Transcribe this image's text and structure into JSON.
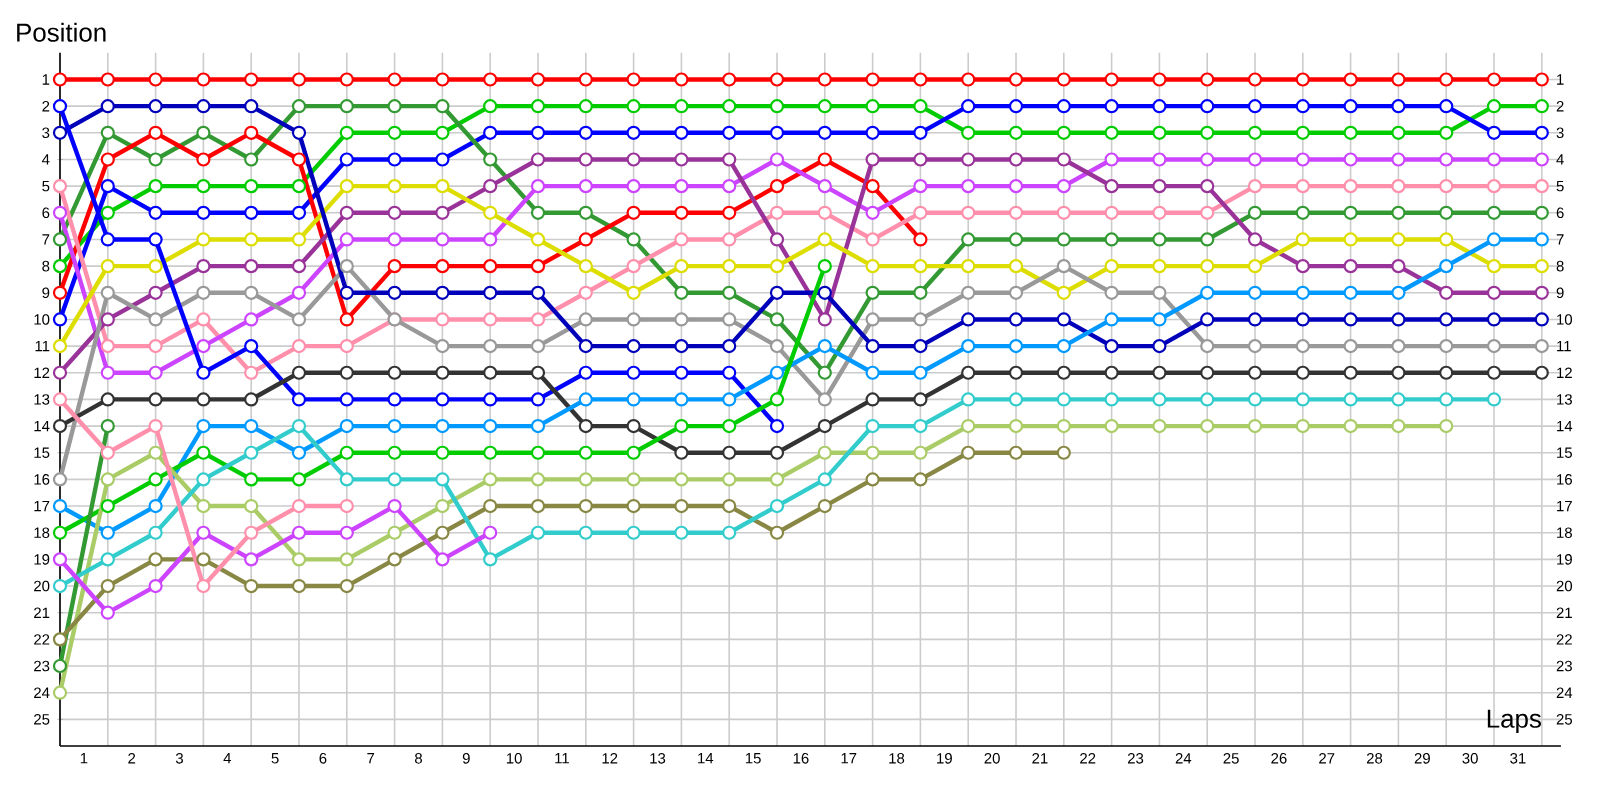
{
  "chart_data": {
    "type": "line",
    "xlabel": "Laps",
    "ylabel": "Position",
    "x": [
      0,
      1,
      2,
      3,
      4,
      5,
      6,
      7,
      8,
      9,
      10,
      11,
      12,
      13,
      14,
      15,
      16,
      17,
      18,
      19,
      20,
      21,
      22,
      23,
      24,
      25,
      26,
      27,
      28,
      29,
      30,
      31
    ],
    "xlim": [
      0,
      31.4
    ],
    "ylim": [
      26,
      0
    ],
    "y2lim": [
      26,
      0
    ],
    "xticks": [
      {
        "value": 0,
        "label": null
      },
      {
        "value": 1,
        "label": null
      },
      {
        "value": 2,
        "label": null
      },
      {
        "value": 3,
        "label": null
      },
      {
        "value": 4,
        "label": null
      },
      {
        "value": 5,
        "label": null
      },
      {
        "value": 6,
        "label": null
      },
      {
        "value": 7,
        "label": null
      },
      {
        "value": 8,
        "label": null
      },
      {
        "value": 9,
        "label": null
      },
      {
        "value": 10,
        "label": null
      },
      {
        "value": 11,
        "label": null
      },
      {
        "value": 12,
        "label": null
      },
      {
        "value": 13,
        "label": null
      },
      {
        "value": 14,
        "label": null
      },
      {
        "value": 15,
        "label": null
      },
      {
        "value": 16,
        "label": null
      },
      {
        "value": 17,
        "label": null
      },
      {
        "value": 18,
        "label": null
      },
      {
        "value": 19,
        "label": null
      },
      {
        "value": 20,
        "label": null
      },
      {
        "value": 21,
        "label": null
      },
      {
        "value": 22,
        "label": null
      },
      {
        "value": 23,
        "label": null
      },
      {
        "value": 24,
        "label": null
      },
      {
        "value": 25,
        "label": null
      },
      {
        "value": 26,
        "label": null
      },
      {
        "value": 27,
        "label": null
      },
      {
        "value": 28,
        "label": null
      },
      {
        "value": 29,
        "label": null
      },
      {
        "value": 30,
        "label": null
      },
      {
        "value": 31,
        "label": null
      },
      {
        "value": 0.5,
        "label": "1"
      },
      {
        "value": 1.5,
        "label": "2"
      },
      {
        "value": 2.5,
        "label": "3"
      },
      {
        "value": 3.5,
        "label": "4"
      },
      {
        "value": 4.5,
        "label": "5"
      },
      {
        "value": 5.5,
        "label": "6"
      },
      {
        "value": 6.5,
        "label": "7"
      },
      {
        "value": 7.5,
        "label": "8"
      },
      {
        "value": 8.5,
        "label": "9"
      },
      {
        "value": 9.5,
        "label": "10"
      },
      {
        "value": 10.5,
        "label": "11"
      },
      {
        "value": 11.5,
        "label": "12"
      },
      {
        "value": 12.5,
        "label": "13"
      },
      {
        "value": 13.5,
        "label": "14"
      },
      {
        "value": 14.5,
        "label": "15"
      },
      {
        "value": 15.5,
        "label": "16"
      },
      {
        "value": 16.5,
        "label": "17"
      },
      {
        "value": 17.5,
        "label": "18"
      },
      {
        "value": 18.5,
        "label": "19"
      },
      {
        "value": 19.5,
        "label": "20"
      },
      {
        "value": 20.5,
        "label": "21"
      },
      {
        "value": 21.5,
        "label": "22"
      },
      {
        "value": 22.5,
        "label": "23"
      },
      {
        "value": 23.5,
        "label": "24"
      },
      {
        "value": 24.5,
        "label": "25"
      },
      {
        "value": 25.5,
        "label": "26"
      },
      {
        "value": 26.5,
        "label": "27"
      },
      {
        "value": 27.5,
        "label": "28"
      },
      {
        "value": 28.5,
        "label": "29"
      },
      {
        "value": 29.5,
        "label": "30"
      },
      {
        "value": 30.5,
        "label": "31"
      }
    ],
    "yticks": [
      1,
      2,
      3,
      4,
      5,
      6,
      7,
      8,
      9,
      10,
      11,
      12,
      13,
      14,
      15,
      16,
      17,
      18,
      19,
      20,
      21,
      22,
      23,
      24,
      25
    ],
    "y2ticks": [
      1,
      2,
      3,
      4,
      5,
      6,
      7,
      8,
      9,
      10,
      11,
      12,
      13,
      14,
      15,
      16,
      17,
      18,
      19,
      20,
      21,
      22,
      23,
      24,
      25
    ],
    "grid": true,
    "marker": "circle",
    "line_style": "solid",
    "series": [
      {
        "color": "#ff0000",
        "values": [
          1,
          1,
          1,
          1,
          1,
          1,
          1,
          1,
          1,
          1,
          1,
          1,
          1,
          1,
          1,
          1,
          1,
          1,
          1,
          1,
          1,
          1,
          1,
          1,
          1,
          1,
          1,
          1,
          1,
          1,
          1,
          1
        ]
      },
      {
        "color": "#00cc00",
        "values": [
          8,
          6,
          5,
          5,
          5,
          5,
          3,
          3,
          3,
          2,
          2,
          2,
          2,
          2,
          2,
          2,
          2,
          2,
          2,
          3,
          3,
          3,
          3,
          3,
          3,
          3,
          3,
          3,
          3,
          3,
          2,
          2
        ]
      },
      {
        "color": "#0000ff",
        "values": [
          10,
          5,
          6,
          6,
          6,
          6,
          4,
          4,
          4,
          3,
          3,
          3,
          3,
          3,
          3,
          3,
          3,
          3,
          3,
          2,
          2,
          2,
          2,
          2,
          2,
          2,
          2,
          2,
          2,
          2,
          3,
          3
        ]
      },
      {
        "color": "#339933",
        "values": [
          7,
          3,
          4,
          3,
          4,
          2,
          2,
          2,
          2,
          4,
          6,
          6,
          7,
          9,
          9,
          10,
          12,
          9,
          9,
          7,
          7,
          7,
          7,
          7,
          7,
          6,
          6,
          6,
          6,
          6,
          6,
          6
        ]
      },
      {
        "color": "#ff0000",
        "values": [
          9,
          4,
          3,
          4,
          3,
          4,
          10,
          8,
          8,
          8,
          8,
          7,
          6,
          6,
          6,
          5,
          4,
          5,
          7,
          null,
          null,
          null,
          null,
          null,
          null,
          null,
          null,
          null,
          null,
          null,
          null,
          null
        ]
      },
      {
        "color": "#ff8fab",
        "values": [
          5,
          11,
          11,
          10,
          12,
          11,
          11,
          10,
          10,
          10,
          10,
          9,
          8,
          7,
          7,
          6,
          6,
          7,
          6,
          6,
          6,
          6,
          6,
          6,
          6,
          5,
          5,
          5,
          5,
          5,
          5,
          5
        ]
      },
      {
        "color": "#cc44ff",
        "values": [
          6,
          12,
          12,
          11,
          10,
          9,
          7,
          7,
          7,
          7,
          5,
          5,
          5,
          5,
          5,
          4,
          5,
          6,
          5,
          5,
          5,
          5,
          4,
          4,
          4,
          4,
          4,
          4,
          4,
          4,
          4,
          4
        ]
      },
      {
        "color": "#993399",
        "values": [
          12,
          10,
          9,
          8,
          8,
          8,
          6,
          6,
          6,
          5,
          4,
          4,
          4,
          4,
          4,
          7,
          10,
          4,
          4,
          4,
          4,
          4,
          5,
          5,
          5,
          7,
          8,
          8,
          8,
          9,
          9,
          9
        ]
      },
      {
        "color": "#dddd00",
        "values": [
          11,
          8,
          8,
          7,
          7,
          7,
          5,
          5,
          5,
          6,
          7,
          8,
          9,
          8,
          8,
          8,
          7,
          8,
          8,
          8,
          8,
          9,
          8,
          8,
          8,
          8,
          7,
          7,
          7,
          7,
          8,
          8
        ]
      },
      {
        "color": "#999999",
        "values": [
          16,
          9,
          10,
          9,
          9,
          10,
          8,
          10,
          11,
          11,
          11,
          10,
          10,
          10,
          10,
          11,
          13,
          10,
          10,
          9,
          9,
          8,
          9,
          9,
          11,
          11,
          11,
          11,
          11,
          11,
          11,
          11
        ]
      },
      {
        "color": "#0000bb",
        "values": [
          3,
          2,
          2,
          2,
          2,
          3,
          9,
          9,
          9,
          9,
          9,
          11,
          11,
          11,
          11,
          9,
          9,
          11,
          11,
          10,
          10,
          10,
          11,
          11,
          10,
          10,
          10,
          10,
          10,
          10,
          10,
          10
        ]
      },
      {
        "color": "#0000ff",
        "values": [
          2,
          7,
          7,
          12,
          11,
          13,
          13,
          13,
          13,
          13,
          13,
          12,
          12,
          12,
          12,
          14,
          null,
          null,
          null,
          null,
          null,
          null,
          null,
          null,
          null,
          null,
          null,
          null,
          null,
          null,
          null,
          null
        ]
      },
      {
        "color": "#333333",
        "values": [
          14,
          13,
          13,
          13,
          13,
          12,
          12,
          12,
          12,
          12,
          12,
          14,
          14,
          15,
          15,
          15,
          14,
          13,
          13,
          12,
          12,
          12,
          12,
          12,
          12,
          12,
          12,
          12,
          12,
          12,
          12,
          12
        ]
      },
      {
        "color": "#0099ff",
        "values": [
          17,
          18,
          17,
          14,
          14,
          15,
          14,
          14,
          14,
          14,
          14,
          13,
          13,
          13,
          13,
          12,
          11,
          12,
          12,
          11,
          11,
          11,
          10,
          10,
          9,
          9,
          9,
          9,
          9,
          8,
          7,
          7
        ]
      },
      {
        "color": "#00cc00",
        "values": [
          18,
          17,
          16,
          15,
          16,
          16,
          15,
          15,
          15,
          15,
          15,
          15,
          15,
          14,
          14,
          13,
          8,
          null,
          null,
          null,
          null,
          null,
          null,
          null,
          null,
          null,
          null,
          null,
          null,
          null,
          null,
          null
        ]
      },
      {
        "color": "#339933",
        "values": [
          23,
          14,
          null,
          null,
          null,
          null,
          null,
          null,
          null,
          null,
          null,
          null,
          null,
          null,
          null,
          null,
          null,
          null,
          null,
          null,
          null,
          null,
          null,
          null,
          null,
          null,
          null,
          null,
          null,
          null,
          null,
          null
        ]
      },
      {
        "color": "#aacc66",
        "values": [
          24,
          16,
          15,
          17,
          17,
          19,
          19,
          18,
          17,
          16,
          16,
          16,
          16,
          16,
          16,
          16,
          15,
          15,
          15,
          14,
          14,
          14,
          14,
          14,
          14,
          14,
          14,
          14,
          14,
          14,
          null,
          null
        ]
      },
      {
        "color": "#888844",
        "values": [
          22,
          20,
          19,
          19,
          20,
          20,
          20,
          19,
          18,
          17,
          17,
          17,
          17,
          17,
          17,
          18,
          17,
          16,
          16,
          15,
          15,
          15,
          null,
          null,
          null,
          null,
          null,
          null,
          null,
          null,
          null,
          null
        ]
      },
      {
        "color": "#33cccc",
        "values": [
          20,
          19,
          18,
          16,
          15,
          14,
          16,
          16,
          16,
          19,
          18,
          18,
          18,
          18,
          18,
          17,
          16,
          14,
          14,
          13,
          13,
          13,
          13,
          13,
          13,
          13,
          13,
          13,
          13,
          13,
          13,
          null
        ]
      },
      {
        "color": "#cc44ff",
        "values": [
          19,
          21,
          20,
          18,
          19,
          18,
          18,
          17,
          19,
          18,
          null,
          null,
          null,
          null,
          null,
          null,
          null,
          null,
          null,
          null,
          null,
          null,
          null,
          null,
          null,
          null,
          null,
          null,
          null,
          null,
          null,
          null
        ]
      },
      {
        "color": "#ff8fab",
        "values": [
          13,
          15,
          14,
          20,
          18,
          17,
          17,
          null,
          null,
          null,
          null,
          null,
          null,
          null,
          null,
          null,
          null,
          null,
          null,
          null,
          null,
          null,
          null,
          null,
          null,
          null,
          null,
          null,
          null,
          null,
          null,
          null
        ]
      }
    ]
  }
}
